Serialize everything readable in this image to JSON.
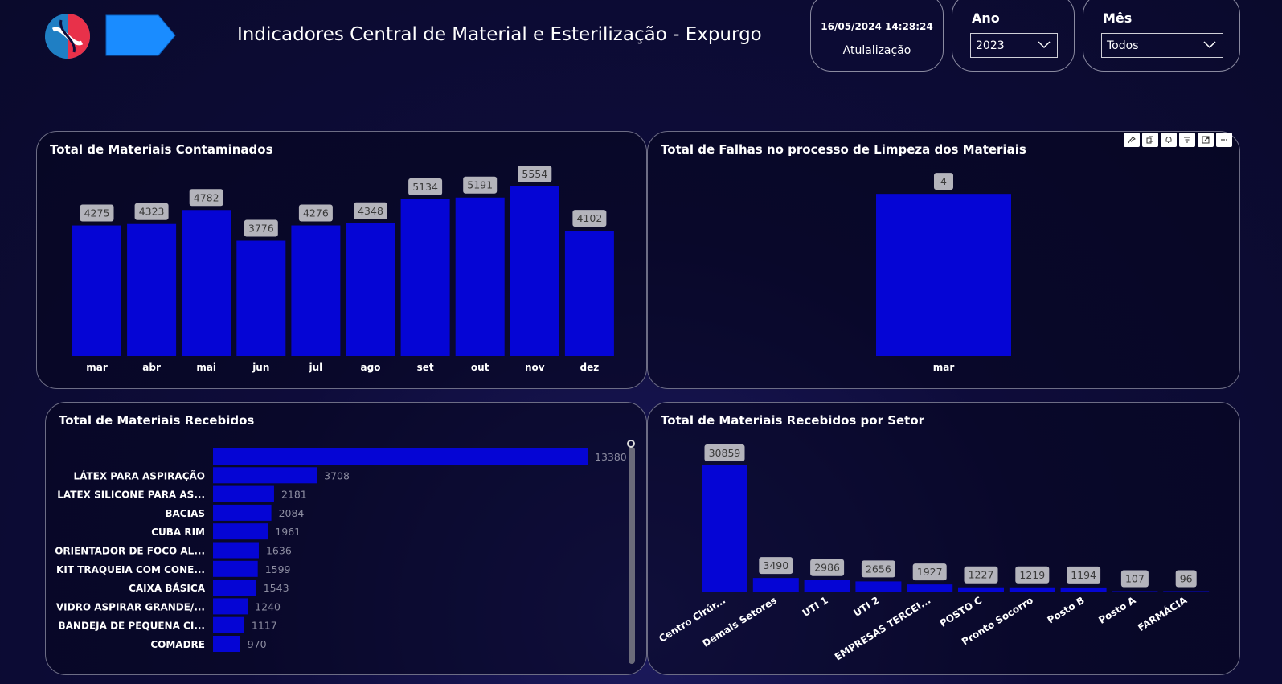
{
  "header": {
    "title": "Indicadores Central de Material e Esterilização - Expurgo",
    "update_datetime": "16/05/2024 14:28:24",
    "update_label": "Atulalização",
    "ano_label": "Ano",
    "ano_value": "2023",
    "mes_label": "Mês",
    "mes_value": "Todos",
    "logo_icon": "hospital-logo-icon",
    "nav_icon": "arrow-right-icon"
  },
  "colors": {
    "bar": "#0505d5",
    "label_box": "#b4b4bc",
    "background": "#0e0c3a"
  },
  "visual_toolbar": {
    "icons": [
      "pin-icon",
      "copy-icon",
      "bell-icon",
      "filter-icon",
      "focus-mode-icon",
      "more-options-icon"
    ]
  },
  "panels": {
    "contaminados": {
      "title": "Total de Materiais Contaminados"
    },
    "falhas": {
      "title": "Total de Falhas no processo de Limpeza dos Materiais"
    },
    "recebidos": {
      "title": "Total de Materiais Recebidos"
    },
    "setor": {
      "title": "Total de Materiais Recebidos por Setor"
    }
  },
  "chart_data": [
    {
      "id": "contaminados",
      "type": "bar",
      "categories": [
        "mar",
        "abr",
        "mai",
        "jun",
        "jul",
        "ago",
        "set",
        "out",
        "nov",
        "dez"
      ],
      "values": [
        4275,
        4323,
        4782,
        3776,
        4276,
        4348,
        5134,
        5191,
        5554,
        4102
      ],
      "ylim": [
        0,
        6000
      ],
      "grid": false
    },
    {
      "id": "falhas",
      "type": "bar",
      "categories": [
        "mar"
      ],
      "values": [
        4
      ],
      "ylim": [
        0,
        4.4
      ],
      "grid": false
    },
    {
      "id": "recebidos",
      "type": "bar",
      "orientation": "horizontal",
      "categories": [
        "",
        "LÁTEX PARA ASPIRAÇÃO",
        "LATEX SILICONE PARA AS...",
        "BACIAS",
        "CUBA RIM",
        "ORIENTADOR DE FOCO AL...",
        "KIT TRAQUEIA COM CONE...",
        "CAIXA BÁSICA",
        "VIDRO ASPIRAR GRANDE/...",
        "BANDEJA DE PEQUENA CI...",
        "COMADRE"
      ],
      "values": [
        13380,
        3708,
        2181,
        2084,
        1961,
        1636,
        1599,
        1543,
        1240,
        1117,
        970
      ],
      "xlim": [
        0,
        13380
      ],
      "grid": false
    },
    {
      "id": "setor",
      "type": "bar",
      "categories": [
        "Centro Cirúr...",
        "Demais Setores",
        "UTI 1",
        "UTI 2",
        "EMPRESAS TERCEI...",
        "POSTO C",
        "Pronto Socorro",
        "Posto B",
        "Posto A",
        "FARMÁCIA"
      ],
      "values": [
        30859,
        3490,
        2986,
        2656,
        1927,
        1227,
        1219,
        1194,
        107,
        96
      ],
      "ylim": [
        0,
        30859
      ],
      "grid": false
    }
  ]
}
